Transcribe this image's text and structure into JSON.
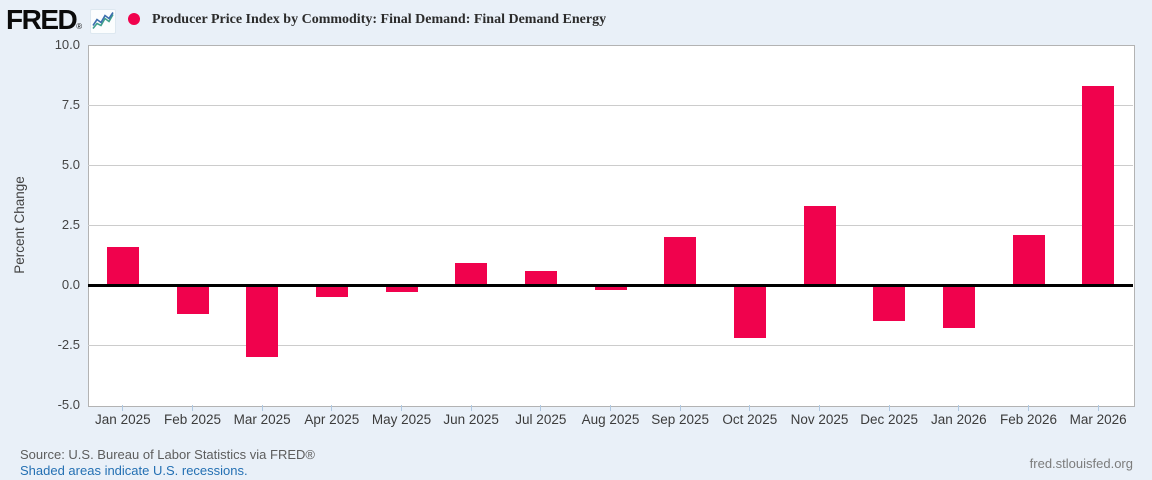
{
  "header": {
    "logo_text": "FRED",
    "logo_registered": "®",
    "sparkline_icon": "fred-sparkline-icon",
    "legend_marker_color": "#f0024d",
    "title": "Producer Price Index by Commodity: Final Demand: Final Demand Energy"
  },
  "chart_data": {
    "type": "bar",
    "title": "Producer Price Index by Commodity: Final Demand: Final Demand Energy",
    "xlabel": "",
    "ylabel": "Percent Change",
    "ylim": [
      -5.0,
      10.0
    ],
    "ytick_interval": 2.5,
    "yticks": [
      "10.0",
      "7.5",
      "5.0",
      "2.5",
      "0.0",
      "-2.5",
      "-5.0"
    ],
    "categories": [
      "Jan 2025",
      "Feb 2025",
      "Mar 2025",
      "Apr 2025",
      "May 2025",
      "Jun 2025",
      "Jul 2025",
      "Aug 2025",
      "Sep 2025",
      "Oct 2025",
      "Nov 2025",
      "Dec 2025",
      "Jan 2026",
      "Feb 2026",
      "Mar 2026"
    ],
    "values": [
      1.6,
      -1.2,
      -3.0,
      -0.5,
      -0.3,
      0.9,
      0.6,
      -0.2,
      2.0,
      -2.2,
      3.3,
      -1.5,
      -1.8,
      2.1,
      8.3
    ],
    "bar_color": "#f0024d",
    "grid": true,
    "zero_line": true,
    "legend_position": "top",
    "plot_background": "#ffffff"
  },
  "footer": {
    "source": "Source: U.S. Bureau of Labor Statistics via FRED®",
    "recessions_note": "Shaded areas indicate U.S. recessions.",
    "site_link": "fred.stlouisfed.org"
  }
}
